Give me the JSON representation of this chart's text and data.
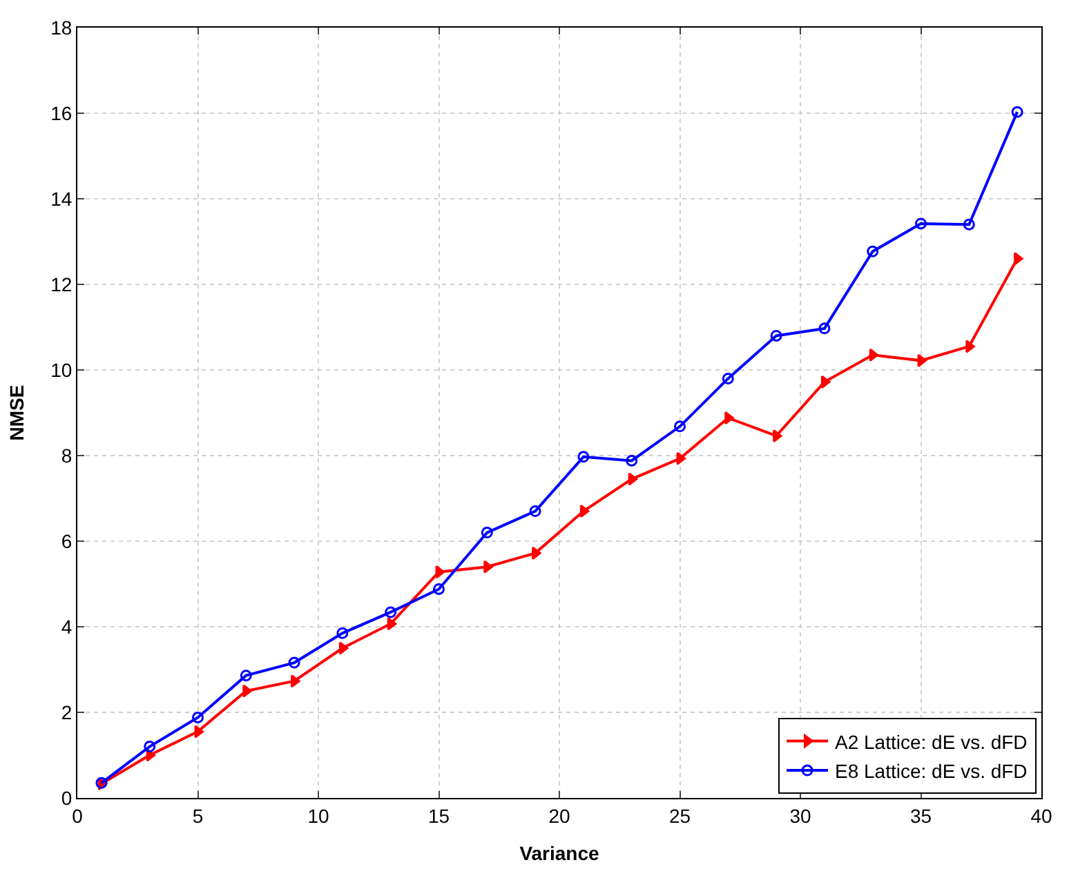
{
  "chart_data": {
    "type": "line",
    "xlabel": "Variance",
    "ylabel": "NMSE",
    "x": [
      1,
      3,
      5,
      7,
      9,
      11,
      13,
      15,
      17,
      19,
      21,
      23,
      25,
      27,
      29,
      31,
      33,
      35,
      37,
      39
    ],
    "series": [
      {
        "name": "A2 Lattice: dE vs. dFD",
        "color": "#ff0000",
        "marker": "triangle",
        "values": [
          0.33,
          1.0,
          1.55,
          2.5,
          2.73,
          3.5,
          4.07,
          5.28,
          5.4,
          5.72,
          6.7,
          7.45,
          7.93,
          8.88,
          8.46,
          9.72,
          10.35,
          10.22,
          10.55,
          12.6
        ]
      },
      {
        "name": "E8 Lattice: dE vs. dFD",
        "color": "#0000ff",
        "marker": "circle",
        "values": [
          0.35,
          1.2,
          1.88,
          2.86,
          3.16,
          3.85,
          4.34,
          4.88,
          6.2,
          6.7,
          7.97,
          7.88,
          8.68,
          9.8,
          10.8,
          10.97,
          12.77,
          13.42,
          13.4,
          16.03
        ]
      }
    ],
    "xlim": [
      0,
      40
    ],
    "xticks": [
      0,
      5,
      10,
      15,
      20,
      25,
      30,
      35,
      40
    ],
    "ylim": [
      0,
      18
    ],
    "yticks": [
      0,
      2,
      4,
      6,
      8,
      10,
      12,
      14,
      16,
      18
    ],
    "grid": true,
    "legend": "bottom right",
    "line_style": "solid"
  }
}
